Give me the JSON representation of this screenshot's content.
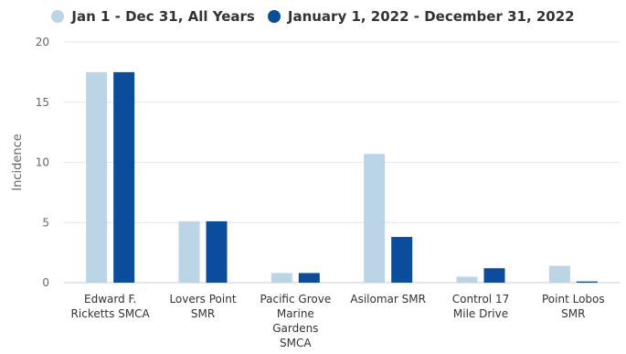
{
  "chart_data": {
    "type": "bar",
    "ylabel": "Incidence",
    "ylim": [
      0,
      20
    ],
    "yticks": [
      0,
      5,
      10,
      15,
      20
    ],
    "grid": true,
    "legend_position": "top-center",
    "categories": [
      [
        "Edward F.",
        "Ricketts SMCA"
      ],
      [
        "Lovers Point",
        "SMR"
      ],
      [
        "Pacific Grove",
        "Marine",
        "Gardens",
        "SMCA"
      ],
      [
        "Asilomar SMR"
      ],
      [
        "Control 17",
        "Mile Drive"
      ],
      [
        "Point Lobos",
        "SMR"
      ]
    ],
    "series": [
      {
        "name": "Jan 1 - Dec 31, All Years",
        "color": "#bcd5e6",
        "values": [
          17.5,
          5.1,
          0.8,
          10.7,
          0.5,
          1.4
        ]
      },
      {
        "name": "January 1, 2022 - December 31, 2022",
        "color": "#0b4d9c",
        "values": [
          17.5,
          5.1,
          0.8,
          3.8,
          1.2,
          0.1
        ]
      }
    ]
  }
}
